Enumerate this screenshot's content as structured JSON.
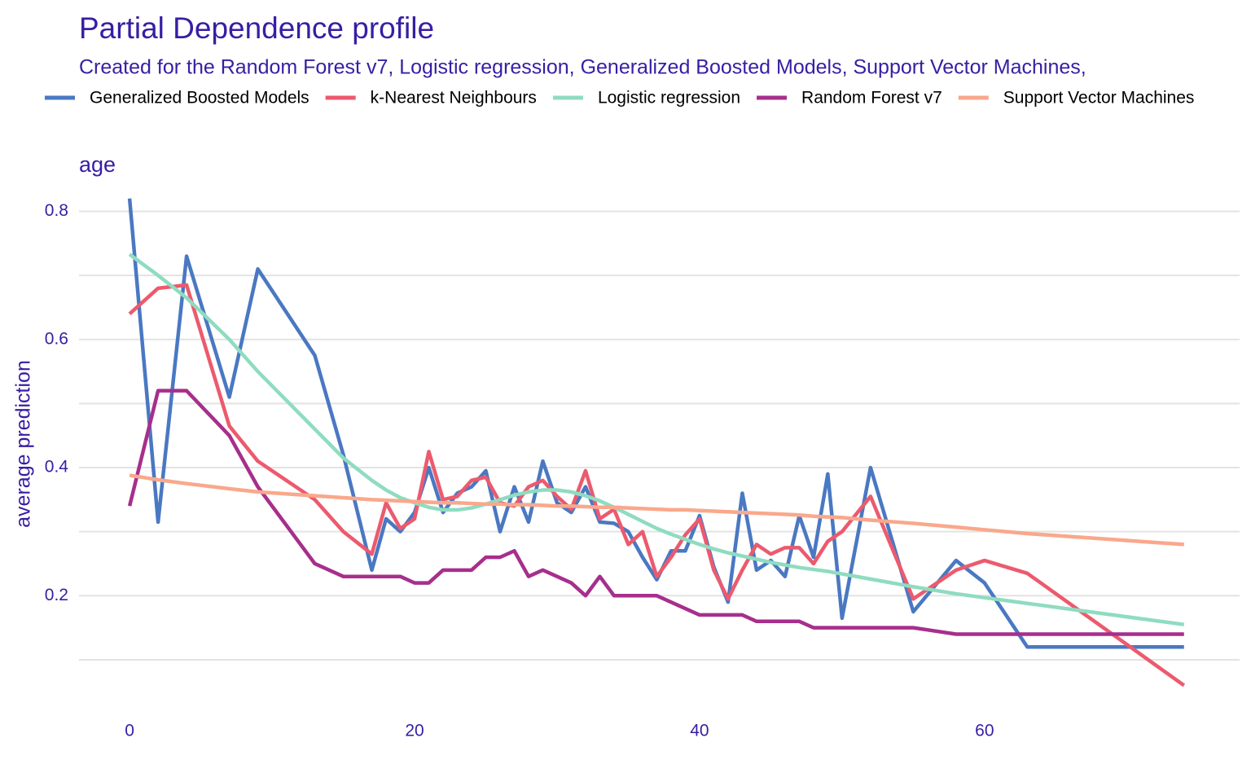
{
  "chart_data": {
    "type": "line",
    "title": "Partial Dependence profile",
    "subtitle": "Created for the Random Forest v7, Logistic regression, Generalized Boosted Models, Support Vector Machines,",
    "panel_title": "age",
    "y_label": "average prediction",
    "x": [
      0,
      2,
      4,
      7,
      9,
      13,
      15,
      17,
      18,
      19,
      20,
      21,
      22,
      23,
      24,
      25,
      26,
      27,
      28,
      29,
      30,
      31,
      32,
      33,
      34,
      35,
      36,
      37,
      38,
      39,
      40,
      41,
      42,
      43,
      44,
      45,
      46,
      47,
      48,
      49,
      50,
      52,
      55,
      58,
      60,
      63,
      74
    ],
    "series": [
      {
        "name": "Generalized Boosted Models",
        "color": "#4a78c2",
        "values": [
          0.82,
          0.315,
          0.73,
          0.51,
          0.71,
          0.575,
          0.42,
          0.24,
          0.32,
          0.3,
          0.33,
          0.4,
          0.33,
          0.36,
          0.37,
          0.395,
          0.3,
          0.37,
          0.315,
          0.41,
          0.345,
          0.33,
          0.37,
          0.315,
          0.313,
          0.3,
          0.26,
          0.225,
          0.27,
          0.27,
          0.325,
          0.245,
          0.19,
          0.36,
          0.24,
          0.255,
          0.23,
          0.325,
          0.26,
          0.39,
          0.165,
          0.4,
          0.175,
          0.255,
          0.22,
          0.12,
          0.12
        ]
      },
      {
        "name": "k-Nearest Neighbours",
        "color": "#ec5a6e",
        "values": [
          0.64,
          0.68,
          0.685,
          0.465,
          0.41,
          0.35,
          0.3,
          0.265,
          0.345,
          0.305,
          0.32,
          0.425,
          0.35,
          0.355,
          0.38,
          0.385,
          0.345,
          0.34,
          0.37,
          0.38,
          0.355,
          0.335,
          0.395,
          0.32,
          0.335,
          0.28,
          0.3,
          0.23,
          0.26,
          0.295,
          0.32,
          0.24,
          0.195,
          0.24,
          0.28,
          0.265,
          0.275,
          0.275,
          0.25,
          0.285,
          0.3,
          0.355,
          0.195,
          0.24,
          0.255,
          0.235,
          0.06
        ]
      },
      {
        "name": "Logistic regression",
        "color": "#8fdcc0",
        "values": [
          0.733,
          0.7,
          0.665,
          0.6,
          0.55,
          0.46,
          0.415,
          0.38,
          0.365,
          0.353,
          0.345,
          0.338,
          0.334,
          0.334,
          0.337,
          0.343,
          0.35,
          0.357,
          0.362,
          0.365,
          0.365,
          0.362,
          0.356,
          0.348,
          0.338,
          0.327,
          0.316,
          0.305,
          0.296,
          0.288,
          0.28,
          0.273,
          0.267,
          0.262,
          0.257,
          0.252,
          0.248,
          0.244,
          0.241,
          0.238,
          0.234,
          0.226,
          0.214,
          0.203,
          0.197,
          0.188,
          0.155
        ]
      },
      {
        "name": "Random Forest v7",
        "color": "#a62f8c",
        "values": [
          0.34,
          0.52,
          0.52,
          0.45,
          0.37,
          0.25,
          0.23,
          0.23,
          0.23,
          0.23,
          0.22,
          0.22,
          0.24,
          0.24,
          0.24,
          0.26,
          0.26,
          0.27,
          0.23,
          0.24,
          0.23,
          0.22,
          0.2,
          0.23,
          0.2,
          0.2,
          0.2,
          0.2,
          0.19,
          0.18,
          0.17,
          0.17,
          0.17,
          0.17,
          0.16,
          0.16,
          0.16,
          0.16,
          0.15,
          0.15,
          0.15,
          0.15,
          0.15,
          0.14,
          0.14,
          0.14,
          0.14
        ]
      },
      {
        "name": "Support Vector Machines",
        "color": "#f9a88c",
        "values": [
          0.388,
          0.381,
          0.375,
          0.367,
          0.362,
          0.356,
          0.353,
          0.35,
          0.349,
          0.348,
          0.347,
          0.346,
          0.345,
          0.345,
          0.344,
          0.343,
          0.343,
          0.342,
          0.342,
          0.341,
          0.34,
          0.34,
          0.339,
          0.338,
          0.338,
          0.337,
          0.336,
          0.335,
          0.334,
          0.334,
          0.333,
          0.332,
          0.331,
          0.33,
          0.329,
          0.328,
          0.327,
          0.326,
          0.324,
          0.323,
          0.322,
          0.318,
          0.313,
          0.307,
          0.303,
          0.297,
          0.28
        ]
      }
    ],
    "xlim": [
      -3.55,
      77.9
    ],
    "xticks": [
      0,
      20,
      40,
      60
    ],
    "ylim": [
      0.03,
      0.84
    ],
    "yticks": [
      0.2,
      0.4,
      0.6,
      0.8
    ],
    "minor_yticks": [
      0.1,
      0.3,
      0.5,
      0.7
    ],
    "grid": true,
    "legend": "top"
  }
}
